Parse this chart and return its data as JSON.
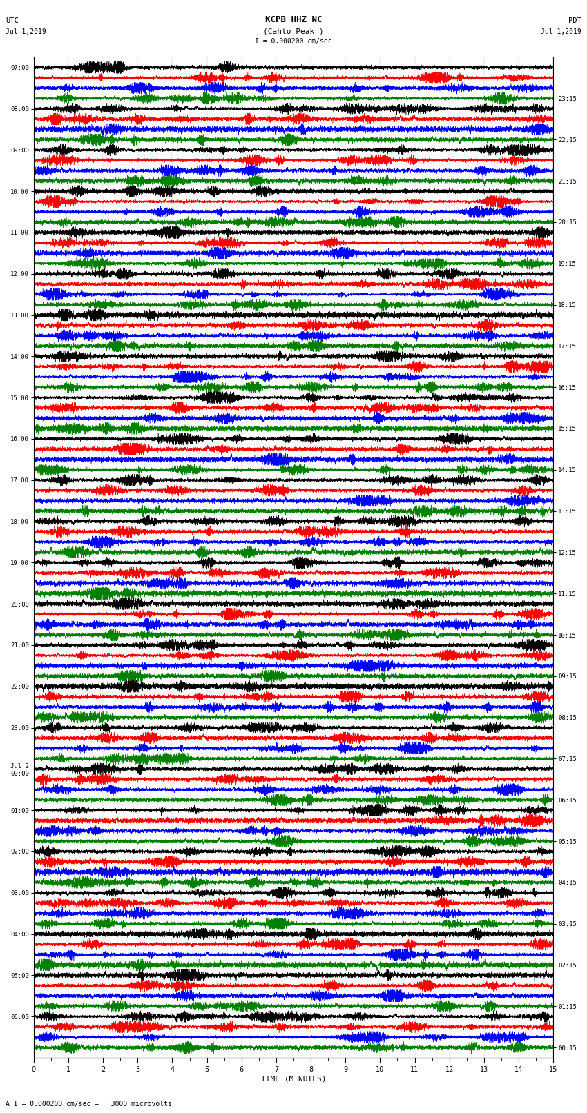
{
  "title_line1": "KCPB HHZ NC",
  "title_line2": "(Cahto Peak )",
  "scale_label": "I = 0.000200 cm/sec",
  "footer_label": "A I = 0.000200 cm/sec =   3000 microvolts",
  "utc_label": "UTC",
  "utc_date": "Jul 1,2019",
  "pdt_label": "PDT",
  "pdt_date": "Jul 1,2019",
  "xlabel": "TIME (MINUTES)",
  "left_times_utc": [
    "07:00",
    "08:00",
    "09:00",
    "10:00",
    "11:00",
    "12:00",
    "13:00",
    "14:00",
    "15:00",
    "16:00",
    "17:00",
    "18:00",
    "19:00",
    "20:00",
    "21:00",
    "22:00",
    "23:00",
    "Jul 2\n00:00",
    "01:00",
    "02:00",
    "03:00",
    "04:00",
    "05:00",
    "06:00"
  ],
  "right_times_pdt": [
    "00:15",
    "01:15",
    "02:15",
    "03:15",
    "04:15",
    "05:15",
    "06:15",
    "07:15",
    "08:15",
    "09:15",
    "10:15",
    "11:15",
    "12:15",
    "13:15",
    "14:15",
    "15:15",
    "16:15",
    "17:15",
    "18:15",
    "19:15",
    "20:15",
    "21:15",
    "22:15",
    "23:15"
  ],
  "n_traces_per_hour": 4,
  "n_hours": 24,
  "trace_colors": [
    "black",
    "red",
    "blue",
    "green"
  ],
  "bg_color": "white",
  "trace_amplitude": 0.38,
  "noise_seed": 42,
  "minutes_per_trace": 15,
  "xmin": 0,
  "xmax": 15,
  "font_family": "monospace",
  "linewidth": 0.35,
  "dpi": 100
}
